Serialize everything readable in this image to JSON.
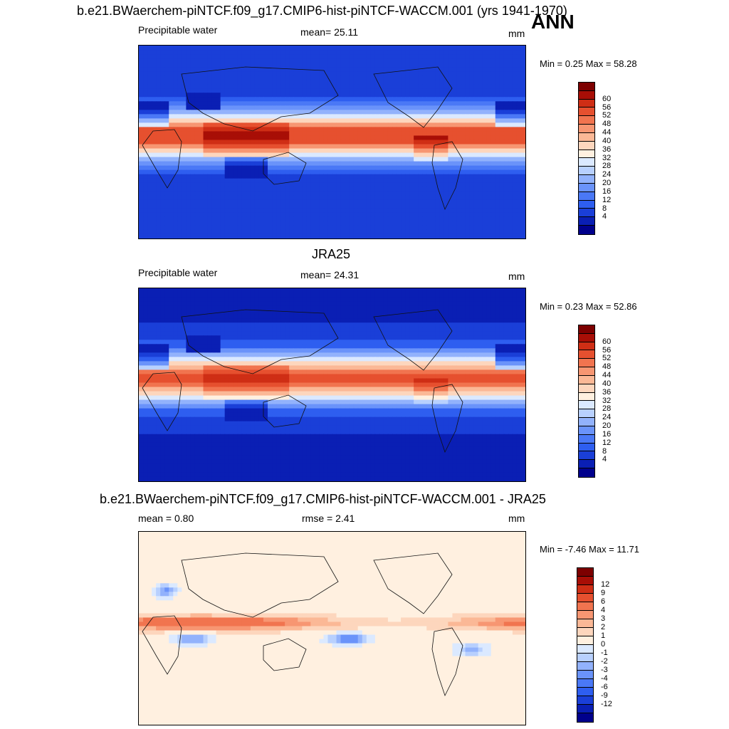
{
  "header": {
    "case_title": "b.e21.BWaerchem-piNTCF.f09_g17.CMIP6-hist-piNTCF-WACCM.001 (yrs 1941-1970)",
    "season": "ANN"
  },
  "panels": [
    {
      "id": "model",
      "title": "",
      "var_label": "Precipitable water",
      "stat_label": "mean=  25.11",
      "units": "mm",
      "minmax": "Min =   0.25 Max =  58.28",
      "palette": [
        "#00008c",
        "#0a1fb4",
        "#1a3fd8",
        "#2e5ef0",
        "#4a78f6",
        "#6a93fa",
        "#92b2fc",
        "#b8d0fe",
        "#dbe9ff",
        "#fff0e0",
        "#fdd6bd",
        "#fbb896",
        "#f79672",
        "#f1744f",
        "#e6502f",
        "#cf2e15",
        "#a80e06",
        "#7d0000"
      ],
      "tick_labels": [
        "4",
        "8",
        "12",
        "16",
        "20",
        "24",
        "28",
        "32",
        "36",
        "40",
        "44",
        "48",
        "52",
        "56",
        "60"
      ]
    },
    {
      "id": "obs",
      "title": "JRA25",
      "var_label": "Precipitable water",
      "stat_label": "mean=  24.31",
      "units": "mm",
      "minmax": "Min =   0.23 Max =  52.86",
      "palette": [
        "#00008c",
        "#0a1fb4",
        "#1a3fd8",
        "#2e5ef0",
        "#4a78f6",
        "#6a93fa",
        "#92b2fc",
        "#b8d0fe",
        "#dbe9ff",
        "#fff0e0",
        "#fdd6bd",
        "#fbb896",
        "#f79672",
        "#f1744f",
        "#e6502f",
        "#cf2e15",
        "#a80e06",
        "#7d0000"
      ],
      "tick_labels": [
        "4",
        "8",
        "12",
        "16",
        "20",
        "24",
        "28",
        "32",
        "36",
        "40",
        "44",
        "48",
        "52",
        "56",
        "60"
      ]
    },
    {
      "id": "diff",
      "title": "b.e21.BWaerchem-piNTCF.f09_g17.CMIP6-hist-piNTCF-WACCM.001 - JRA25",
      "var_label": "mean =   0.80",
      "stat_label": "rmse =   2.41",
      "units": "mm",
      "minmax": "Min =  -7.46 Max =  11.71",
      "palette": [
        "#00008c",
        "#0a1fb4",
        "#1a3fd8",
        "#2e5ef0",
        "#4a78f6",
        "#6a93fa",
        "#92b2fc",
        "#b8d0fe",
        "#dbe9ff",
        "#fff0e0",
        "#fdd6bd",
        "#fbb896",
        "#f79672",
        "#f1744f",
        "#e6502f",
        "#cf2e15",
        "#a80e06",
        "#7d0000"
      ],
      "tick_labels": [
        "-12",
        "-9",
        "-6",
        "-4",
        "-3",
        "-2",
        "-1",
        "0",
        "1",
        "2",
        "3",
        "4",
        "6",
        "9",
        "12"
      ]
    }
  ],
  "chart_data": [
    {
      "type": "heatmap",
      "title": "b.e21.BWaerchem-piNTCF.f09_g17.CMIP6-hist-piNTCF-WACCM.001 (yrs 1941-1970)",
      "variable": "Precipitable water",
      "units": "mm",
      "mean": 25.11,
      "min": 0.25,
      "max": 58.28,
      "levels": [
        4,
        8,
        12,
        16,
        20,
        24,
        28,
        32,
        36,
        40,
        44,
        48,
        52,
        56,
        60
      ]
    },
    {
      "type": "heatmap",
      "title": "JRA25",
      "variable": "Precipitable water",
      "units": "mm",
      "mean": 24.31,
      "min": 0.23,
      "max": 52.86,
      "levels": [
        4,
        8,
        12,
        16,
        20,
        24,
        28,
        32,
        36,
        40,
        44,
        48,
        52,
        56,
        60
      ]
    },
    {
      "type": "heatmap",
      "title": "b.e21.BWaerchem-piNTCF.f09_g17.CMIP6-hist-piNTCF-WACCM.001 - JRA25",
      "units": "mm",
      "mean": 0.8,
      "rmse": 2.41,
      "min": -7.46,
      "max": 11.71,
      "levels": [
        -12,
        -9,
        -6,
        -4,
        -3,
        -2,
        -1,
        0,
        1,
        2,
        3,
        4,
        6,
        9,
        12
      ]
    }
  ]
}
